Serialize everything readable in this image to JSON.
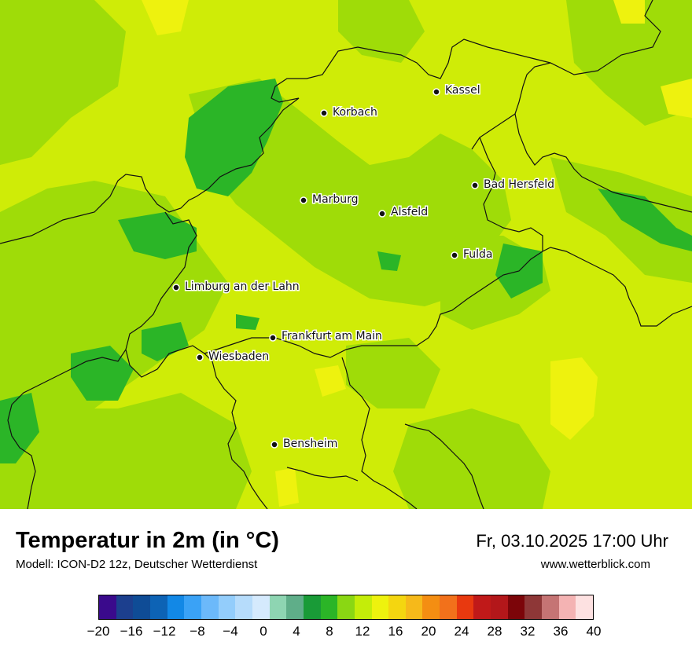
{
  "cities": [
    {
      "name": "Kassel"
    },
    {
      "name": "Korbach"
    },
    {
      "name": "Bad Hersfeld"
    },
    {
      "name": "Marburg"
    },
    {
      "name": "Alsfeld"
    },
    {
      "name": "Fulda"
    },
    {
      "name": "Limburg an der Lahn"
    },
    {
      "name": "Frankfurt am Main"
    },
    {
      "name": "Wiesbaden"
    },
    {
      "name": "Bensheim"
    }
  ],
  "footer": {
    "title": "Temperatur in 2m (in °C)",
    "subtitle": "Modell: ICON-D2 12z, Deutscher Wetterdienst",
    "datetime": "Fr, 03.10.2025 17:00 Uhr",
    "website": "www.wetterblick.com"
  },
  "legend": {
    "ticks": [
      "−20",
      "−16",
      "−12",
      "−8",
      "−4",
      "0",
      "4",
      "8",
      "12",
      "16",
      "20",
      "24",
      "28",
      "32",
      "36",
      "40"
    ],
    "colors": [
      "#3a0a8c",
      "#1c3f8e",
      "#0f4c96",
      "#0d63b5",
      "#1288e6",
      "#3aa2f6",
      "#6cb9fa",
      "#93cdfb",
      "#b6dcfb",
      "#d5eafd",
      "#8ed5b2",
      "#5fae89",
      "#199b37",
      "#2bb527",
      "#8ad713",
      "#c4ed09",
      "#eef20e",
      "#f4d610",
      "#f6b91a",
      "#f48e12",
      "#f2711b",
      "#e8390f",
      "#c01919",
      "#b3171a",
      "#7c0509",
      "#8e3737",
      "#c57474",
      "#f4b3b3",
      "#fde1e1"
    ]
  }
}
